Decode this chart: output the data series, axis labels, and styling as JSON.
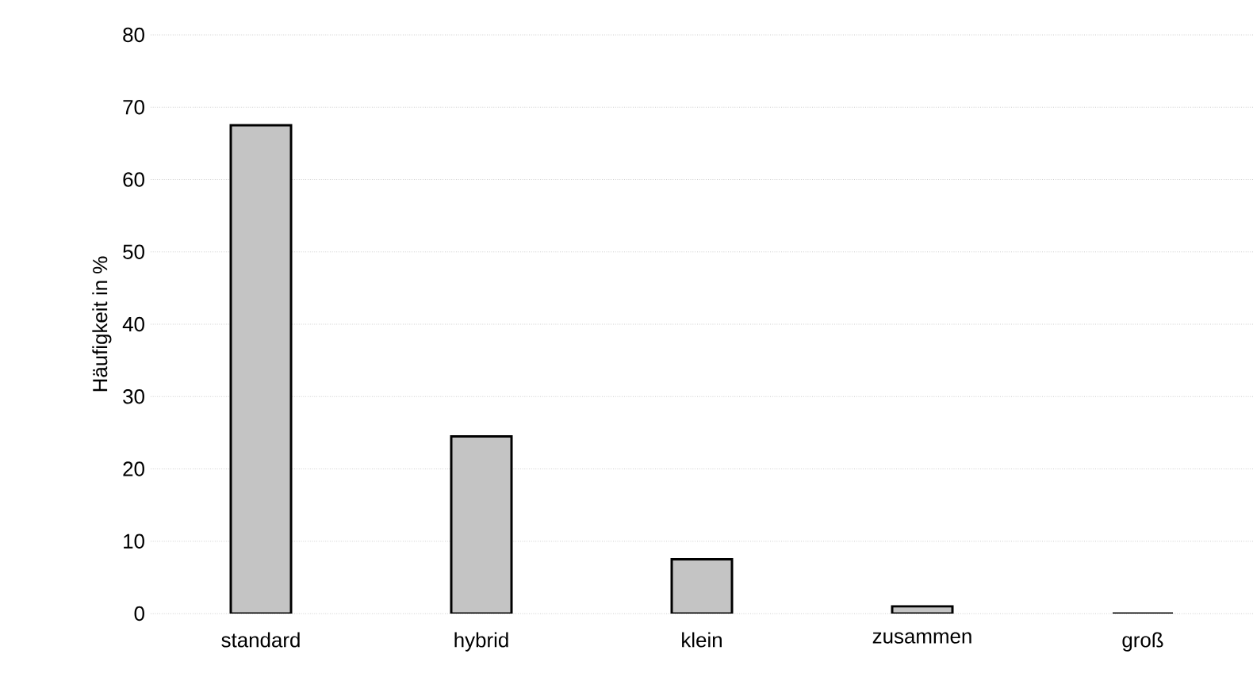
{
  "chart_data": {
    "type": "bar",
    "ylabel": "Häufigkeit in %",
    "categories": [
      "standard",
      "hybrid",
      "klein",
      "zusammen",
      "groß"
    ],
    "values": [
      67.5,
      24.5,
      7.5,
      1,
      0
    ],
    "color": "#c4c4c4",
    "ylim": [
      0,
      80
    ],
    "yticks": [
      0,
      10,
      20,
      30,
      40,
      50,
      60,
      70,
      80
    ],
    "grid": "y"
  }
}
